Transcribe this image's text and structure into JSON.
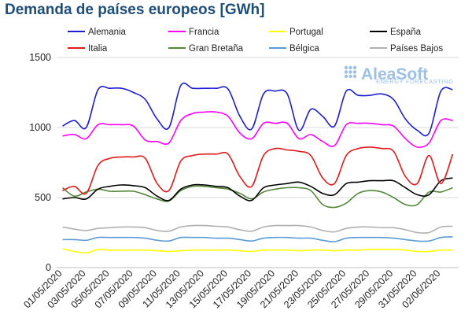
{
  "page": {
    "title": "Demanda de países europeos [GWh]"
  },
  "logo": {
    "name": "AleaSoft",
    "tagline": "ENERGY FORECASTING",
    "color": "#9fc0e6"
  },
  "chart_data": {
    "type": "line",
    "title": "Demanda de países europeos [GWh]",
    "xlabel": "",
    "ylabel": "",
    "ylim": [
      0,
      1500
    ],
    "yticks": [
      0,
      500,
      1000,
      1500
    ],
    "grid": true,
    "legend_position": "top",
    "x": [
      "01/05/2020",
      "02/05/2020",
      "03/05/2020",
      "04/05/2020",
      "05/05/2020",
      "06/05/2020",
      "07/05/2020",
      "08/05/2020",
      "09/05/2020",
      "10/05/2020",
      "11/05/2020",
      "12/05/2020",
      "13/05/2020",
      "14/05/2020",
      "15/05/2020",
      "16/05/2020",
      "17/05/2020",
      "18/05/2020",
      "19/05/2020",
      "20/05/2020",
      "21/05/2020",
      "22/05/2020",
      "23/05/2020",
      "24/05/2020",
      "25/05/2020",
      "26/05/2020",
      "27/05/2020",
      "28/05/2020",
      "29/05/2020",
      "30/05/2020",
      "31/05/2020",
      "01/06/2020",
      "02/06/2020",
      "03/06/2020"
    ],
    "xtick_labels": [
      "01/05/2020",
      "03/05/2020",
      "05/05/2020",
      "07/05/2020",
      "09/05/2020",
      "11/05/2020",
      "13/05/2020",
      "15/05/2020",
      "17/05/2020",
      "19/05/2020",
      "21/05/2020",
      "23/05/2020",
      "25/05/2020",
      "27/05/2020",
      "29/05/2020",
      "31/05/2020",
      "02/06/2020"
    ],
    "series": [
      {
        "name": "Alemania",
        "color": "#1f1fd2",
        "values": [
          1010,
          1050,
          1000,
          1270,
          1280,
          1280,
          1250,
          1200,
          1060,
          1000,
          1300,
          1280,
          1280,
          1280,
          1275,
          1080,
          990,
          1240,
          1260,
          1240,
          980,
          1130,
          1080,
          1010,
          1260,
          1230,
          1230,
          1240,
          1200,
          1060,
          980,
          960,
          1260,
          1270
        ]
      },
      {
        "name": "Francia",
        "color": "#ff00ff",
        "values": [
          940,
          950,
          920,
          1020,
          1020,
          1020,
          1010,
          910,
          900,
          890,
          1050,
          1100,
          1110,
          1110,
          1080,
          960,
          920,
          1030,
          1030,
          1030,
          920,
          950,
          900,
          870,
          1020,
          1030,
          1030,
          1020,
          1010,
          920,
          860,
          890,
          1050,
          1050
        ]
      },
      {
        "name": "Portugal",
        "color": "#ffff00",
        "values": [
          135,
          115,
          105,
          130,
          125,
          125,
          125,
          125,
          120,
          115,
          120,
          125,
          125,
          125,
          125,
          120,
          115,
          125,
          125,
          125,
          120,
          125,
          125,
          120,
          125,
          125,
          130,
          130,
          130,
          125,
          115,
          115,
          125,
          125
        ]
      },
      {
        "name": "España",
        "color": "#000000",
        "values": [
          490,
          500,
          490,
          560,
          580,
          590,
          585,
          570,
          510,
          480,
          560,
          590,
          590,
          580,
          570,
          510,
          480,
          570,
          590,
          600,
          610,
          580,
          530,
          520,
          600,
          610,
          620,
          620,
          620,
          570,
          520,
          520,
          620,
          640
        ]
      },
      {
        "name": "Italia",
        "color": "#e21a1a",
        "values": [
          550,
          580,
          530,
          730,
          780,
          790,
          790,
          780,
          600,
          550,
          760,
          800,
          810,
          810,
          810,
          650,
          580,
          800,
          850,
          840,
          830,
          800,
          640,
          600,
          800,
          850,
          860,
          850,
          830,
          650,
          600,
          800,
          600,
          810
        ]
      },
      {
        "name": "Gran Bretaña",
        "color": "#53883b",
        "values": [
          570,
          510,
          540,
          560,
          545,
          545,
          545,
          520,
          490,
          475,
          550,
          580,
          580,
          570,
          560,
          530,
          490,
          540,
          560,
          570,
          570,
          550,
          450,
          430,
          460,
          530,
          550,
          540,
          500,
          450,
          450,
          540,
          540,
          570
        ]
      },
      {
        "name": "Bélgica",
        "color": "#5b9bd5",
        "values": [
          200,
          200,
          195,
          215,
          215,
          215,
          215,
          210,
          195,
          190,
          215,
          215,
          215,
          210,
          210,
          200,
          190,
          210,
          215,
          215,
          210,
          210,
          195,
          185,
          210,
          215,
          215,
          215,
          210,
          200,
          190,
          190,
          215,
          220
        ]
      },
      {
        "name": "Países Bajos",
        "color": "#b0b0b0",
        "values": [
          290,
          275,
          265,
          280,
          285,
          290,
          290,
          285,
          265,
          260,
          290,
          300,
          300,
          295,
          290,
          270,
          260,
          290,
          300,
          300,
          300,
          290,
          265,
          255,
          280,
          290,
          290,
          285,
          285,
          270,
          250,
          250,
          290,
          295
        ]
      }
    ]
  }
}
